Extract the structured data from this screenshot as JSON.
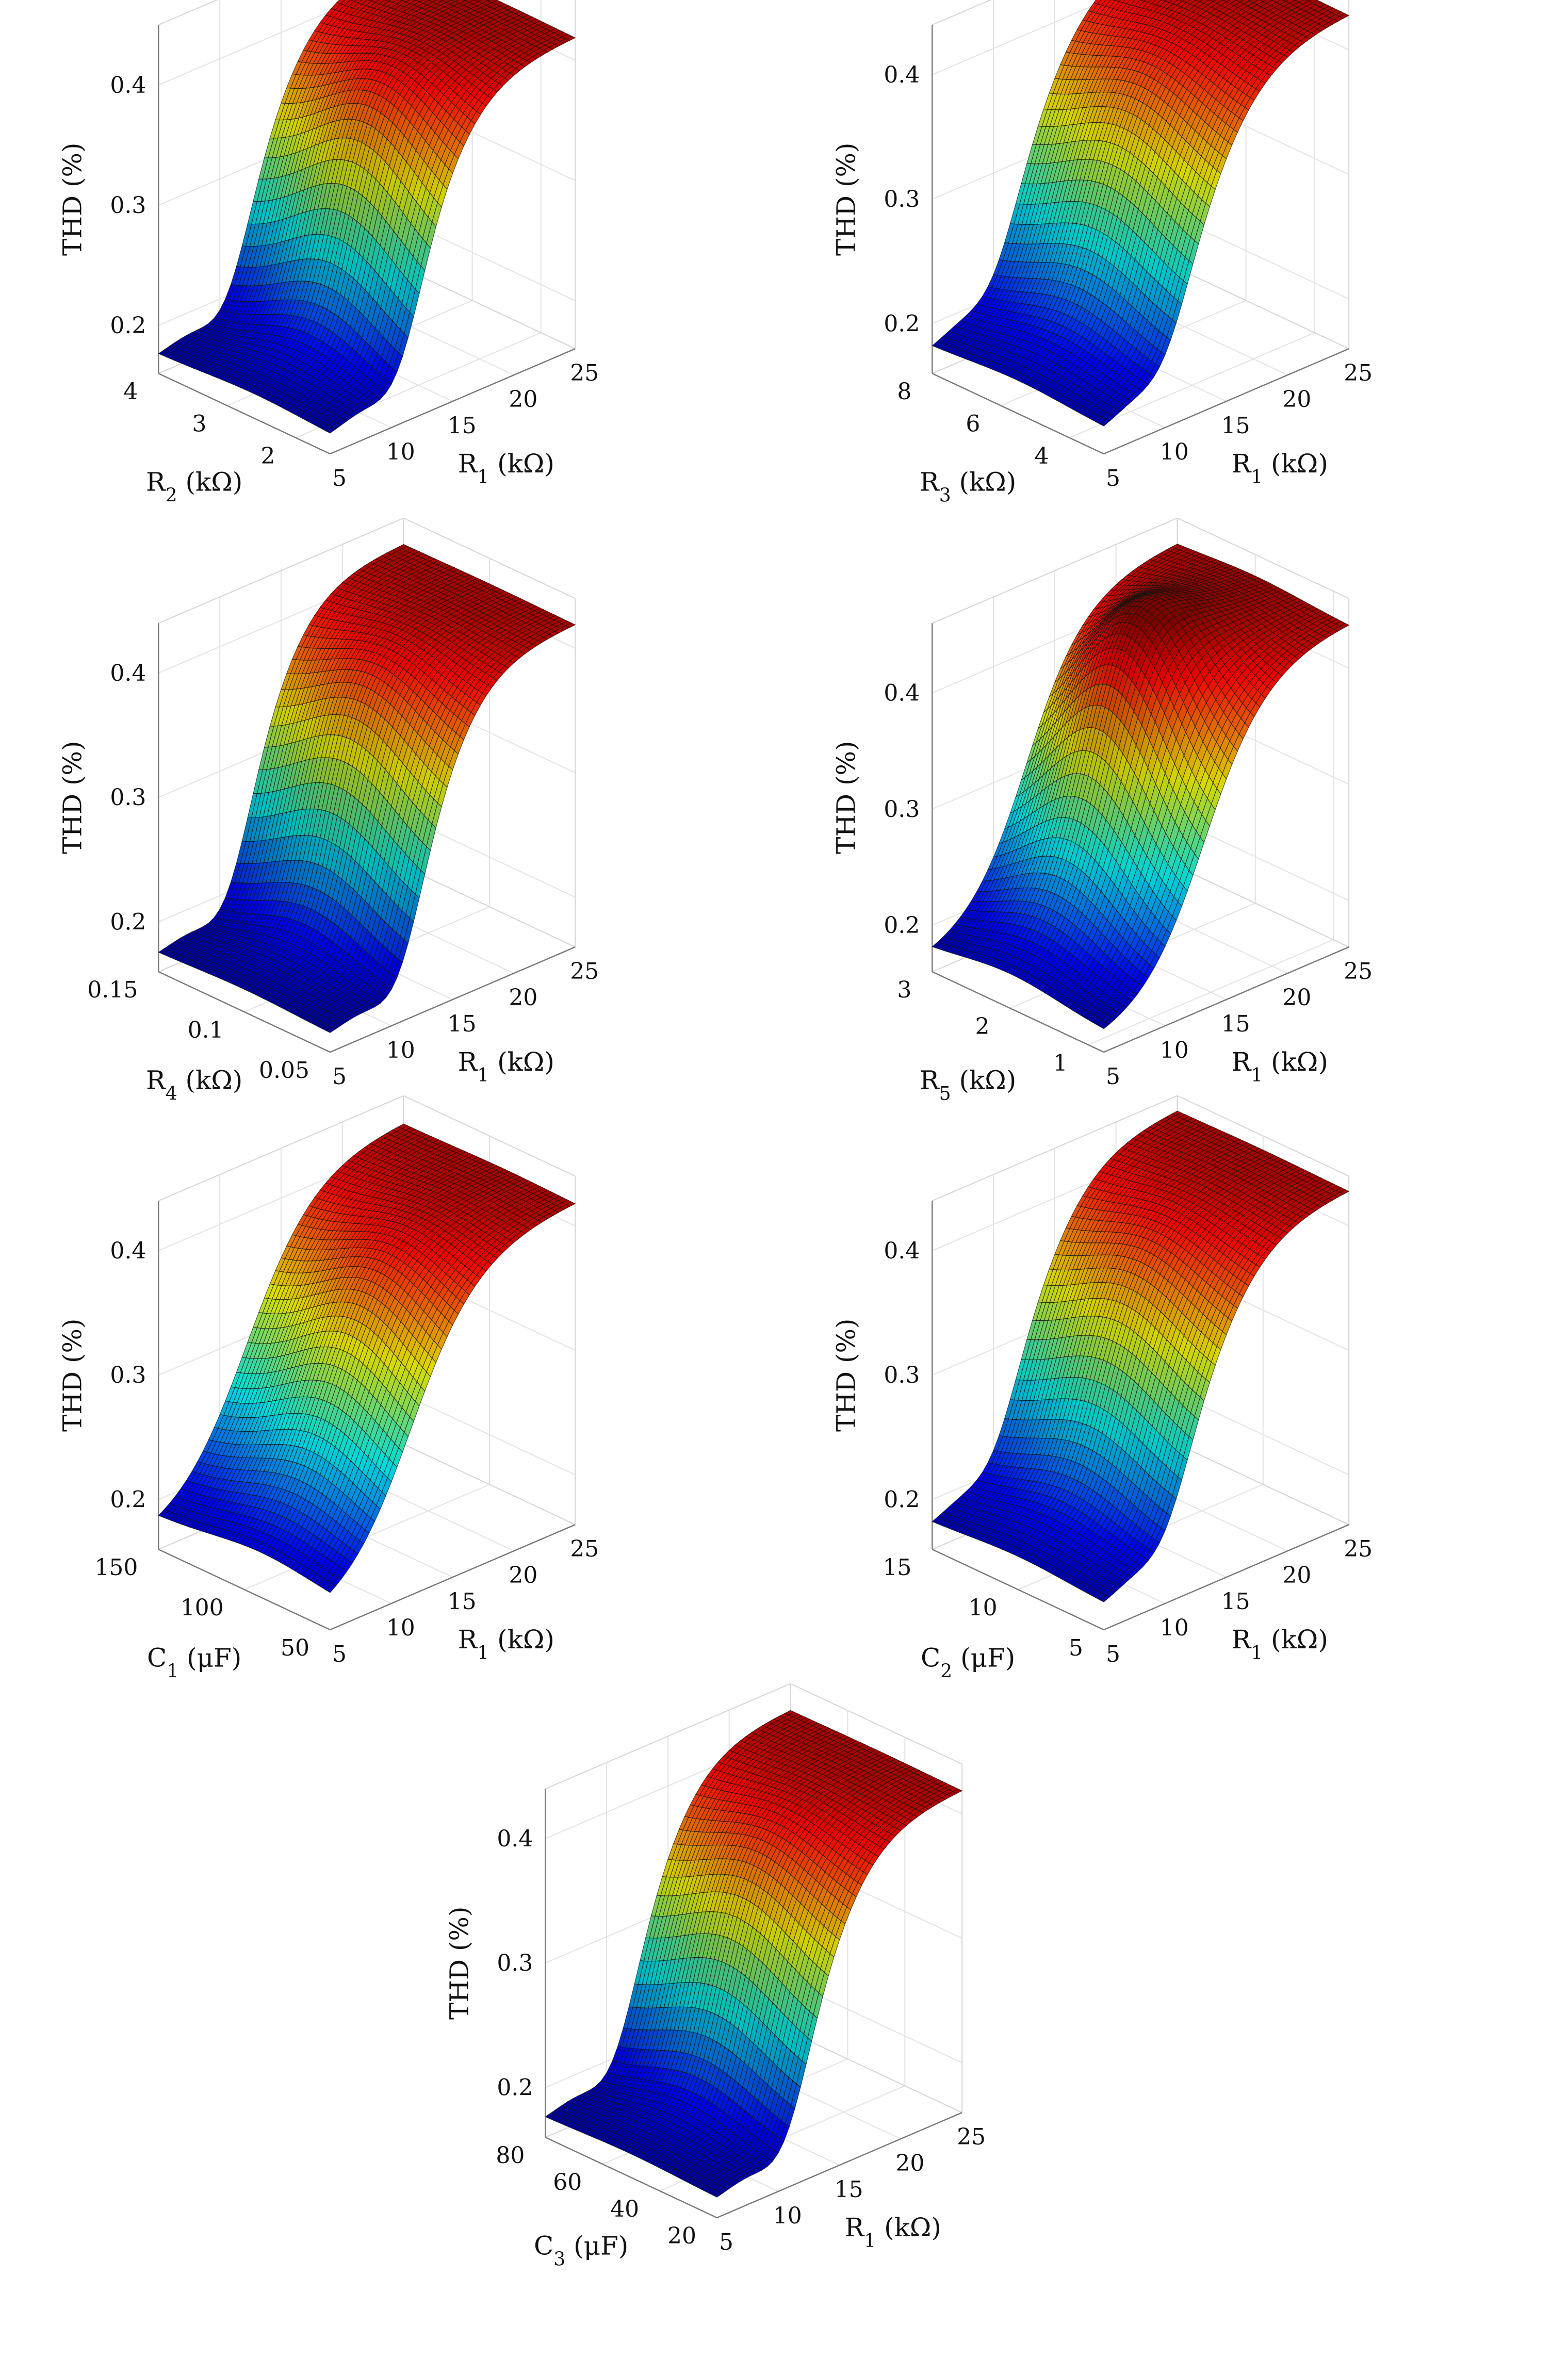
{
  "colors": {
    "grid": "#e3e3e3",
    "axis_box": "#7a7a7a",
    "mesh_line": "#111111",
    "text": "#111111",
    "colormap": "jet"
  },
  "chart_data": [
    {
      "type": "surface3d",
      "x_label": "R1 (kΩ)",
      "x_sym": "R",
      "x_sub": "1",
      "x_unit": " (kΩ)",
      "x_range": [
        5,
        25
      ],
      "x_ticks": [
        5,
        10,
        15,
        20,
        25
      ],
      "y_label": "R2 (kΩ)",
      "y_sym": "R",
      "y_sub": "2",
      "y_unit": " (kΩ)",
      "y_range": [
        1.5,
        4
      ],
      "y_ticks": [
        2,
        3,
        4
      ],
      "z_label": "THD (%)",
      "z_range": [
        0.16,
        0.45
      ],
      "z_ticks": [
        0.2,
        0.3,
        0.4
      ],
      "surface": {
        "x_center": 13.5,
        "x_width": 2.3,
        "z_low": 0.17,
        "z_high": 0.42,
        "y_effect": 0.06,
        "y_peak": 2.6,
        "dip": 0.03
      },
      "grid": true
    },
    {
      "type": "surface3d",
      "x_label": "R1 (kΩ)",
      "x_sym": "R",
      "x_sub": "1",
      "x_unit": " (kΩ)",
      "x_range": [
        5,
        25
      ],
      "x_ticks": [
        5,
        10,
        15,
        20,
        25
      ],
      "y_label": "R3 (kΩ)",
      "y_sym": "R",
      "y_sub": "3",
      "y_unit": " (kΩ)",
      "y_range": [
        3,
        8
      ],
      "y_ticks": [
        4,
        6,
        8
      ],
      "z_label": "THD (%)",
      "z_range": [
        0.16,
        0.44
      ],
      "z_ticks": [
        0.2,
        0.3,
        0.4
      ],
      "surface": {
        "x_center": 13,
        "x_width": 2.6,
        "z_low": 0.17,
        "z_high": 0.43,
        "y_effect": 0.04,
        "y_peak": 5.5,
        "dip": 0.02
      },
      "grid": true
    },
    {
      "type": "surface3d",
      "x_label": "R1 (kΩ)",
      "x_sym": "R",
      "x_sub": "1",
      "x_unit": " (kΩ)",
      "x_range": [
        5,
        25
      ],
      "x_ticks": [
        5,
        10,
        15,
        20,
        25
      ],
      "y_label": "R4 (kΩ)",
      "y_sym": "R",
      "y_sub": "4",
      "y_unit": " (kΩ)",
      "y_range": [
        0.05,
        0.15
      ],
      "y_ticks": [
        0.05,
        0.1,
        0.15
      ],
      "z_label": "THD (%)",
      "z_range": [
        0.16,
        0.44
      ],
      "z_ticks": [
        0.2,
        0.3,
        0.4
      ],
      "surface": {
        "x_center": 13.5,
        "x_width": 2.2,
        "z_low": 0.17,
        "z_high": 0.42,
        "y_effect": 0.05,
        "y_peak": 0.1,
        "dip": 0.03
      },
      "grid": true
    },
    {
      "type": "surface3d",
      "x_label": "R1 (kΩ)",
      "x_sym": "R",
      "x_sub": "1",
      "x_unit": " (kΩ)",
      "x_range": [
        5,
        25
      ],
      "x_ticks": [
        5,
        10,
        15,
        20,
        25
      ],
      "y_label": "R5 (kΩ)",
      "y_sym": "R",
      "y_sub": "5",
      "y_unit": " (kΩ)",
      "y_range": [
        0.8,
        3
      ],
      "y_ticks": [
        1,
        2,
        3
      ],
      "z_label": "THD (%)",
      "z_range": [
        0.16,
        0.46
      ],
      "z_ticks": [
        0.2,
        0.3,
        0.4
      ],
      "surface": {
        "x_center": 14,
        "x_width": 2.6,
        "z_low": 0.17,
        "z_high": 0.44,
        "y_effect": 0.12,
        "y_peak": 2.0,
        "dip": 0.0
      },
      "grid": true
    },
    {
      "type": "surface3d",
      "x_label": "R1 (kΩ)",
      "x_sym": "R",
      "x_sub": "1",
      "x_unit": " (kΩ)",
      "x_range": [
        5,
        25
      ],
      "x_ticks": [
        5,
        10,
        15,
        20,
        25
      ],
      "y_label": "C1 (μF)",
      "y_sym": "C",
      "y_sub": "1",
      "y_unit": " (μF)",
      "y_range": [
        50,
        150
      ],
      "y_ticks": [
        50,
        100,
        150
      ],
      "z_label": "THD (%)",
      "z_range": [
        0.16,
        0.44
      ],
      "z_ticks": [
        0.2,
        0.3,
        0.4
      ],
      "surface": {
        "x_center": 12.5,
        "x_width": 2.8,
        "z_low": 0.17,
        "z_high": 0.42,
        "y_effect": 0.05,
        "y_peak": 90,
        "dip": 0.0
      },
      "grid": true
    },
    {
      "type": "surface3d",
      "x_label": "R1 (kΩ)",
      "x_sym": "R",
      "x_sub": "1",
      "x_unit": " (kΩ)",
      "x_range": [
        5,
        25
      ],
      "x_ticks": [
        5,
        10,
        15,
        20,
        25
      ],
      "y_label": "C2 (μF)",
      "y_sym": "C",
      "y_sub": "2",
      "y_unit": " (μF)",
      "y_range": [
        5,
        15
      ],
      "y_ticks": [
        5,
        10,
        15
      ],
      "z_label": "THD (%)",
      "z_range": [
        0.16,
        0.44
      ],
      "z_ticks": [
        0.2,
        0.3,
        0.4
      ],
      "surface": {
        "x_center": 13,
        "x_width": 2.6,
        "z_low": 0.17,
        "z_high": 0.43,
        "y_effect": 0.04,
        "y_peak": 10,
        "dip": 0.02
      },
      "grid": true
    },
    {
      "type": "surface3d",
      "x_label": "R1 (kΩ)",
      "x_sym": "R",
      "x_sub": "1",
      "x_unit": " (kΩ)",
      "x_range": [
        5,
        25
      ],
      "x_ticks": [
        5,
        10,
        15,
        20,
        25
      ],
      "y_label": "C3 (μF)",
      "y_sym": "C",
      "y_sub": "3",
      "y_unit": " (μF)",
      "y_range": [
        20,
        80
      ],
      "y_ticks": [
        20,
        40,
        60,
        80
      ],
      "z_label": "THD (%)",
      "z_range": [
        0.16,
        0.44
      ],
      "z_ticks": [
        0.2,
        0.3,
        0.4
      ],
      "surface": {
        "x_center": 13.5,
        "x_width": 2.3,
        "z_low": 0.17,
        "z_high": 0.42,
        "y_effect": 0.04,
        "y_peak": 50,
        "dip": 0.03
      },
      "grid": true
    }
  ]
}
